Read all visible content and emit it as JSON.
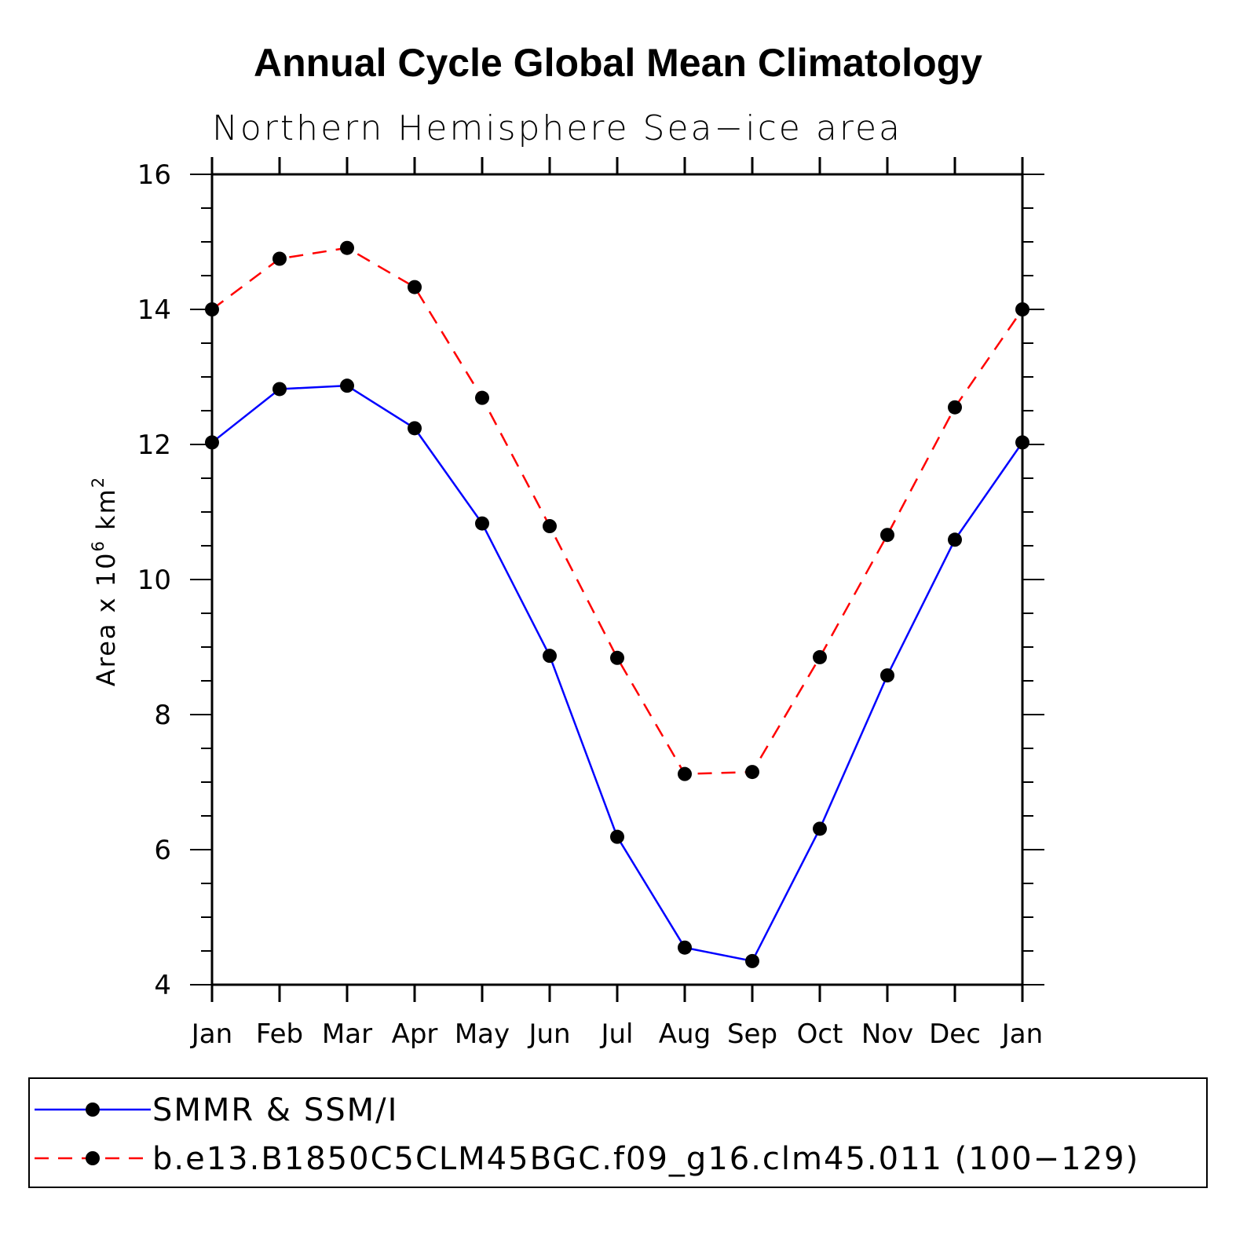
{
  "chart_data": {
    "type": "line",
    "title": "Annual Cycle Global Mean Climatology",
    "subtitle": "Northern Hemisphere Sea−ice area",
    "ylabel_prefix": "Area x 10",
    "ylabel_exp": "6",
    "ylabel_unit": " km",
    "ylabel_unit_exp": "2",
    "xlabel": "",
    "categories": [
      "Jan",
      "Feb",
      "Mar",
      "Apr",
      "May",
      "Jun",
      "Jul",
      "Aug",
      "Sep",
      "Oct",
      "Nov",
      "Dec",
      "Jan"
    ],
    "ylim": [
      4,
      16
    ],
    "yticks": [
      4,
      6,
      8,
      10,
      12,
      14,
      16
    ],
    "series": [
      {
        "name": "SMMR & SSM/I",
        "color": "#0000ff",
        "style": "solid",
        "values": [
          12.03,
          12.82,
          12.87,
          12.24,
          10.83,
          8.87,
          6.19,
          4.55,
          4.35,
          6.31,
          8.58,
          10.59,
          12.03
        ]
      },
      {
        "name": "b.e13.B1850C5CLM45BGC.f09_g16.clm45.011 (100−129)",
        "color": "#ff0000",
        "style": "dashed",
        "values": [
          14.0,
          14.75,
          14.91,
          14.33,
          12.69,
          10.79,
          8.84,
          7.12,
          7.15,
          8.85,
          10.66,
          12.55,
          14.0
        ]
      }
    ]
  }
}
